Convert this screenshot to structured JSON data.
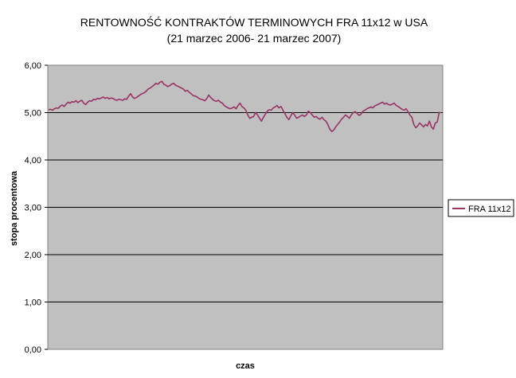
{
  "chart_data": {
    "type": "line",
    "title": "RENTOWNOŚĆ KONTRAKTÓW TERMINOWYCH FRA 11x12 w USA",
    "subtitle": "(21 marzec 2006- 21 marzec 2007)",
    "xlabel": "czas",
    "ylabel": "stopa procentowa",
    "ylim": [
      0,
      6
    ],
    "yticks": [
      "0,00",
      "1,00",
      "2,00",
      "3,00",
      "4,00",
      "5,00",
      "6,00"
    ],
    "grid": true,
    "legend_position": "right",
    "plot_background": "#c0c0c0",
    "series": [
      {
        "name": "FRA 11x12",
        "color": "#993366",
        "values": [
          5.06,
          5.07,
          5.05,
          5.08,
          5.1,
          5.09,
          5.14,
          5.16,
          5.13,
          5.18,
          5.22,
          5.2,
          5.23,
          5.22,
          5.25,
          5.21,
          5.24,
          5.26,
          5.2,
          5.17,
          5.22,
          5.25,
          5.24,
          5.28,
          5.27,
          5.3,
          5.29,
          5.31,
          5.33,
          5.3,
          5.32,
          5.29,
          5.31,
          5.3,
          5.27,
          5.26,
          5.28,
          5.27,
          5.26,
          5.29,
          5.28,
          5.35,
          5.4,
          5.33,
          5.3,
          5.32,
          5.35,
          5.38,
          5.4,
          5.42,
          5.45,
          5.5,
          5.52,
          5.55,
          5.58,
          5.62,
          5.6,
          5.64,
          5.66,
          5.6,
          5.58,
          5.55,
          5.57,
          5.6,
          5.62,
          5.58,
          5.56,
          5.54,
          5.52,
          5.5,
          5.45,
          5.47,
          5.43,
          5.4,
          5.36,
          5.35,
          5.33,
          5.3,
          5.28,
          5.27,
          5.25,
          5.3,
          5.37,
          5.32,
          5.28,
          5.25,
          5.24,
          5.26,
          5.22,
          5.2,
          5.15,
          5.12,
          5.1,
          5.08,
          5.1,
          5.12,
          5.08,
          5.15,
          5.2,
          5.13,
          5.1,
          5.05,
          4.95,
          4.88,
          4.9,
          4.92,
          5.0,
          4.95,
          4.88,
          4.82,
          4.9,
          4.97,
          5.03,
          5.06,
          5.05,
          5.1,
          5.12,
          5.15,
          5.1,
          5.13,
          5.05,
          4.98,
          4.9,
          4.85,
          4.93,
          5.0,
          4.95,
          4.88,
          4.9,
          4.93,
          4.95,
          4.92,
          4.95,
          5.03,
          5.0,
          4.95,
          4.9,
          4.92,
          4.88,
          4.86,
          4.9,
          4.85,
          4.82,
          4.75,
          4.65,
          4.6,
          4.63,
          4.7,
          4.75,
          4.8,
          4.86,
          4.9,
          4.95,
          4.92,
          4.88,
          4.95,
          5.0,
          5.02,
          4.98,
          4.94,
          4.97,
          5.03,
          5.05,
          5.08,
          5.1,
          5.12,
          5.1,
          5.14,
          5.16,
          5.18,
          5.2,
          5.22,
          5.18,
          5.2,
          5.17,
          5.16,
          5.18,
          5.2,
          5.15,
          5.13,
          5.1,
          5.07,
          5.05,
          5.08,
          5.02,
          4.95,
          4.9,
          4.75,
          4.68,
          4.72,
          4.78,
          4.74,
          4.7,
          4.75,
          4.72,
          4.82,
          4.7,
          4.65,
          4.78,
          4.8,
          5.0,
          5.0
        ]
      }
    ]
  }
}
